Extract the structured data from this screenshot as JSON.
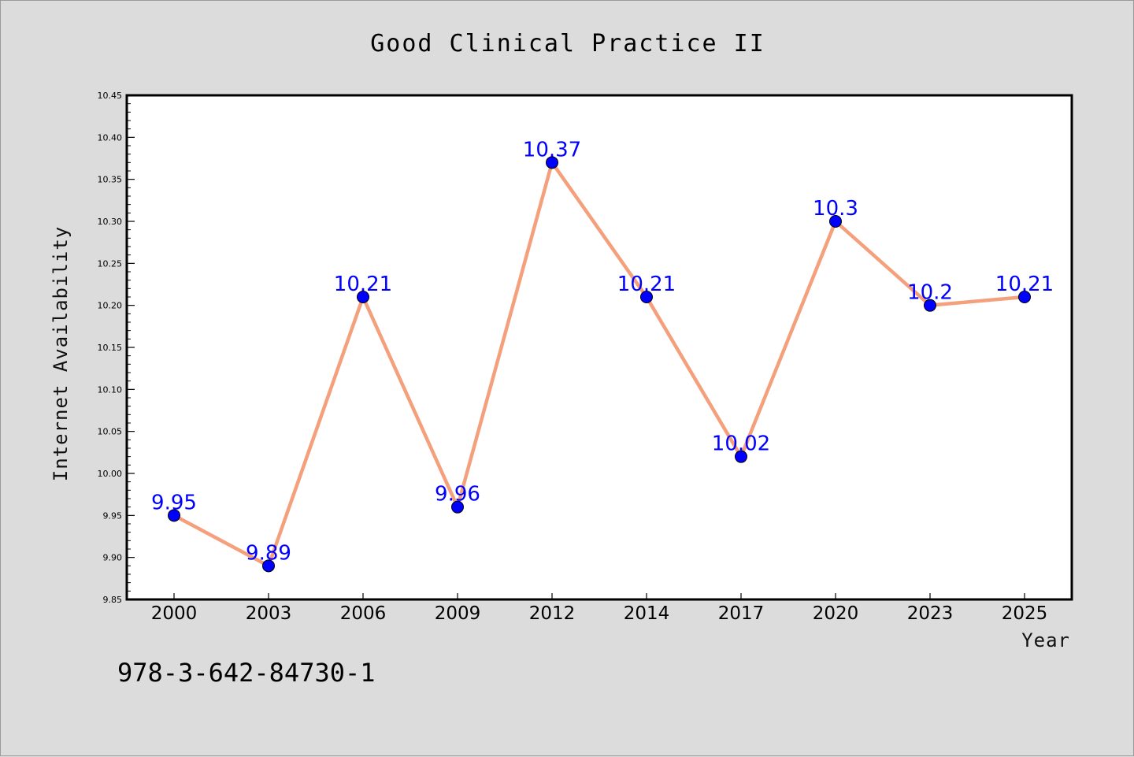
{
  "chart_data": {
    "type": "line",
    "title": "Good Clinical Practice II",
    "xlabel": "Year",
    "ylabel": "Internet Availability",
    "categories": [
      "2000",
      "2003",
      "2006",
      "2009",
      "2012",
      "2014",
      "2017",
      "2020",
      "2023",
      "2025"
    ],
    "series": [
      {
        "values": [
          9.95,
          9.89,
          10.21,
          9.96,
          10.37,
          10.21,
          10.02,
          10.3,
          10.2,
          10.21
        ],
        "data_labels": [
          "9.95",
          "9.89",
          "10.21",
          "9.96",
          "10.37",
          "10.21",
          "10.02",
          "10.3",
          "10.2",
          "10.21"
        ],
        "line_color": "#f4a07c",
        "marker_color": "#0000ff"
      }
    ],
    "ylim": [
      9.85,
      10.45
    ],
    "yticks": [
      "9.85",
      "9.90",
      "9.95",
      "10.00",
      "10.05",
      "10.10",
      "10.15",
      "10.20",
      "10.25",
      "10.30",
      "10.35",
      "10.40",
      "10.45"
    ],
    "grid": false,
    "legend": "none"
  },
  "footer_text": "978-3-642-84730-1",
  "colors": {
    "background": "#dcdcdc",
    "plot_background": "#ffffff",
    "line": "#f4a07c",
    "marker": "#0000ff",
    "data_label": "#0000ff"
  }
}
